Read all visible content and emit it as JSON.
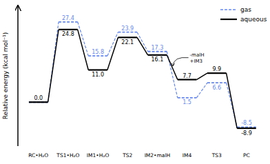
{
  "chart_data": {
    "type": "line",
    "ylabel": "Relative energy (kcal mol⁻¹)",
    "categories": [
      "RC•H₂O",
      "TS1•H₂O",
      "IM1•H₂O",
      "TS2",
      "IM2•malH",
      "IM4",
      "TS3",
      "PC"
    ],
    "series": [
      {
        "name": "gas",
        "color": "#6688ee",
        "line_style": "dashed",
        "values": [
          0.0,
          27.4,
          15.8,
          23.9,
          17.3,
          1.5,
          6.6,
          -8.5
        ],
        "value_labels": [
          null,
          "27.4",
          "15.8",
          "23.9",
          "17.3",
          "1.5",
          "6.6",
          "-8.5"
        ]
      },
      {
        "name": "aqueous",
        "color": "#000000",
        "line_style": "solid",
        "values": [
          0.0,
          24.8,
          11.0,
          22.1,
          16.1,
          7.7,
          9.9,
          -8.9
        ],
        "value_labels": [
          "0.0",
          "24.8",
          "11.0",
          "22.1",
          "16.1",
          "7.7",
          "9.9",
          "-8.9"
        ]
      }
    ],
    "ylim": [
      -15,
      33
    ],
    "tick_labels": "x",
    "data_labels": true,
    "legend": "upper right",
    "annotations": [
      {
        "text": "-malH\n+IM3"
      }
    ]
  }
}
